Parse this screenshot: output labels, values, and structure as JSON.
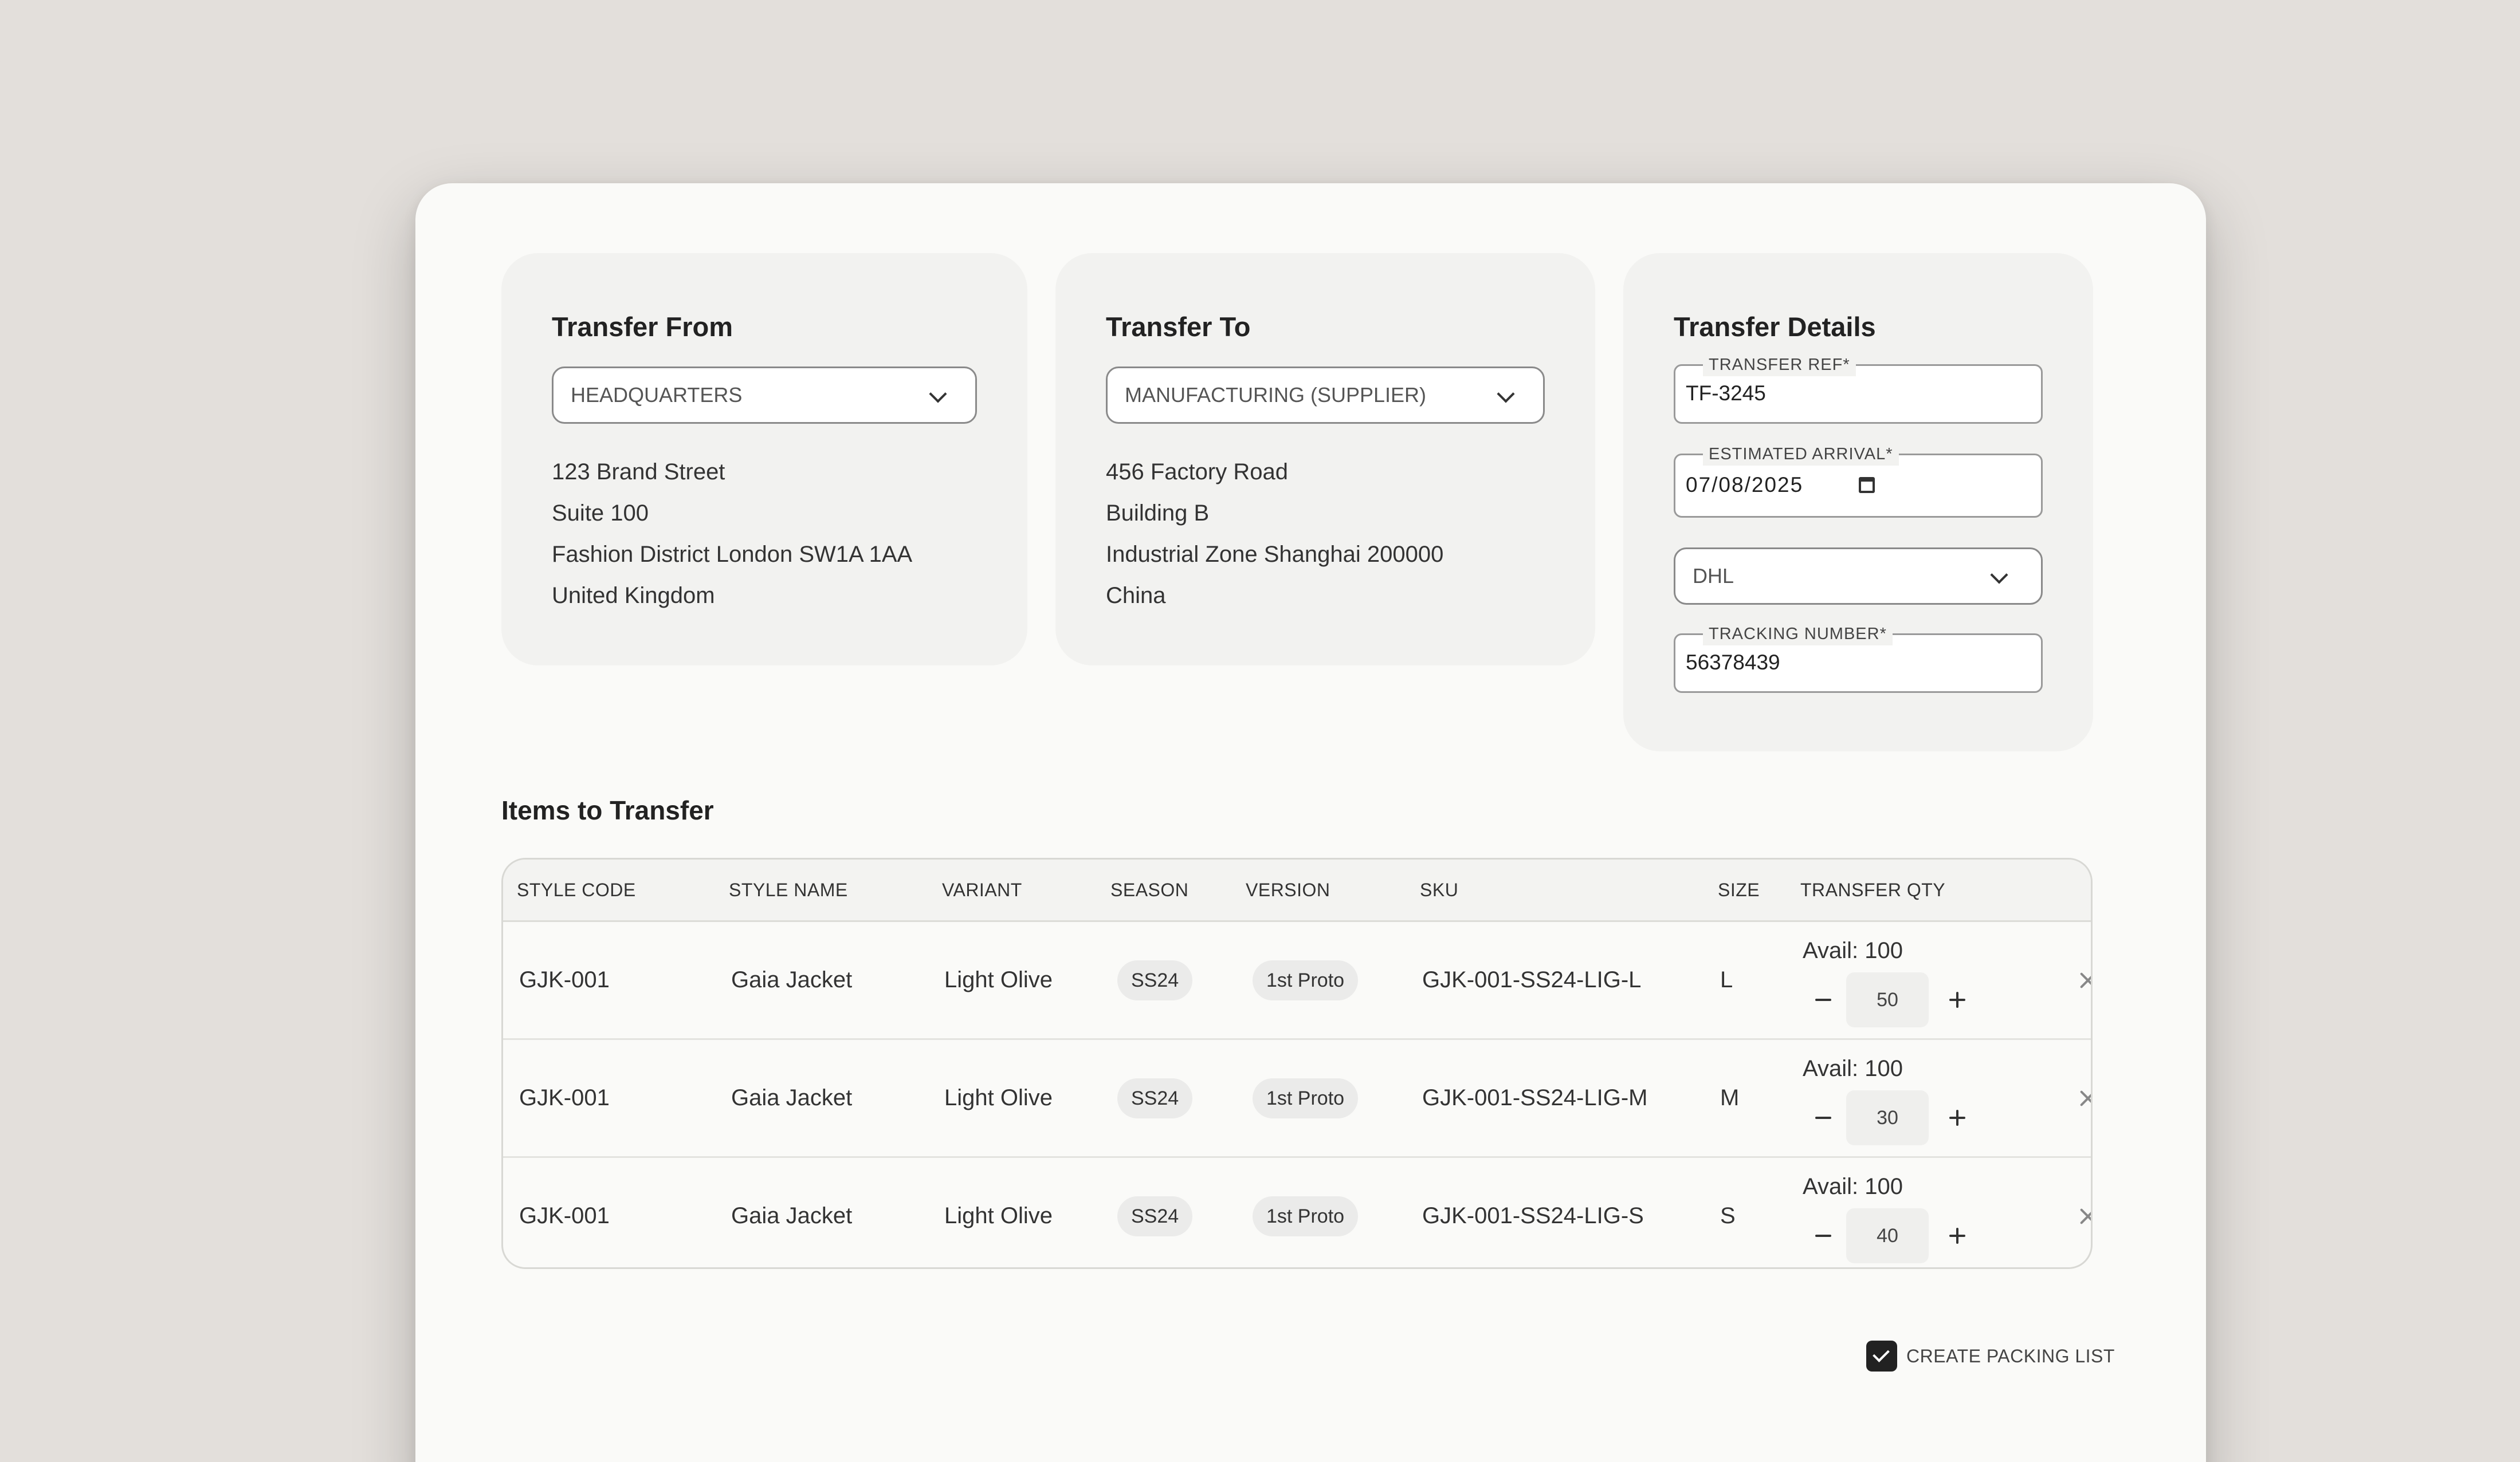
{
  "transfer_from": {
    "title": "Transfer From",
    "location_selected": "HEADQUARTERS",
    "address": [
      "123 Brand Street",
      "Suite 100",
      "Fashion District London SW1A 1AA",
      "United Kingdom"
    ]
  },
  "transfer_to": {
    "title": "Transfer To",
    "location_selected": "MANUFACTURING (SUPPLIER)",
    "address": [
      "456 Factory Road",
      "Building B",
      "Industrial Zone Shanghai 200000",
      "China"
    ]
  },
  "transfer_details": {
    "title": "Transfer Details",
    "transfer_ref_label": "TRANSFER REF*",
    "transfer_ref_value": "TF-3245",
    "estimated_arrival_label": "ESTIMATED ARRIVAL*",
    "estimated_arrival_value": "07/08/2025",
    "carrier_selected": "DHL",
    "tracking_number_label": "TRACKING NUMBER*",
    "tracking_number_value": "56378439"
  },
  "items": {
    "title": "Items to Transfer",
    "columns": [
      "STYLE CODE",
      "STYLE NAME",
      "VARIANT",
      "SEASON",
      "VERSION",
      "SKU",
      "SIZE",
      "TRANSFER QTY"
    ],
    "rows": [
      {
        "style_code": "GJK-001",
        "style_name": "Gaia Jacket",
        "variant": "Light Olive",
        "season": "SS24",
        "version": "1st Proto",
        "sku": "GJK-001-SS24-LIG-L",
        "size": "L",
        "avail": "Avail: 100",
        "qty": "50"
      },
      {
        "style_code": "GJK-001",
        "style_name": "Gaia Jacket",
        "variant": "Light Olive",
        "season": "SS24",
        "version": "1st Proto",
        "sku": "GJK-001-SS24-LIG-M",
        "size": "M",
        "avail": "Avail: 100",
        "qty": "30"
      },
      {
        "style_code": "GJK-001",
        "style_name": "Gaia Jacket",
        "variant": "Light Olive",
        "season": "SS24",
        "version": "1st Proto",
        "sku": "GJK-001-SS24-LIG-S",
        "size": "S",
        "avail": "Avail: 100",
        "qty": "40"
      }
    ]
  },
  "packing_list": {
    "label": "CREATE PACKING LIST",
    "checked": true
  },
  "icons": {
    "dropdown": "chevron-down-icon",
    "calendar": "calendar-icon",
    "decrement": "minus-icon",
    "increment": "plus-icon",
    "remove": "close-icon",
    "checkbox": "check-icon"
  },
  "colors": {
    "background": "#e3dfdb",
    "window": "#fafaf8",
    "card": "#f2f2f0",
    "checkbox_fill": "#222222"
  }
}
